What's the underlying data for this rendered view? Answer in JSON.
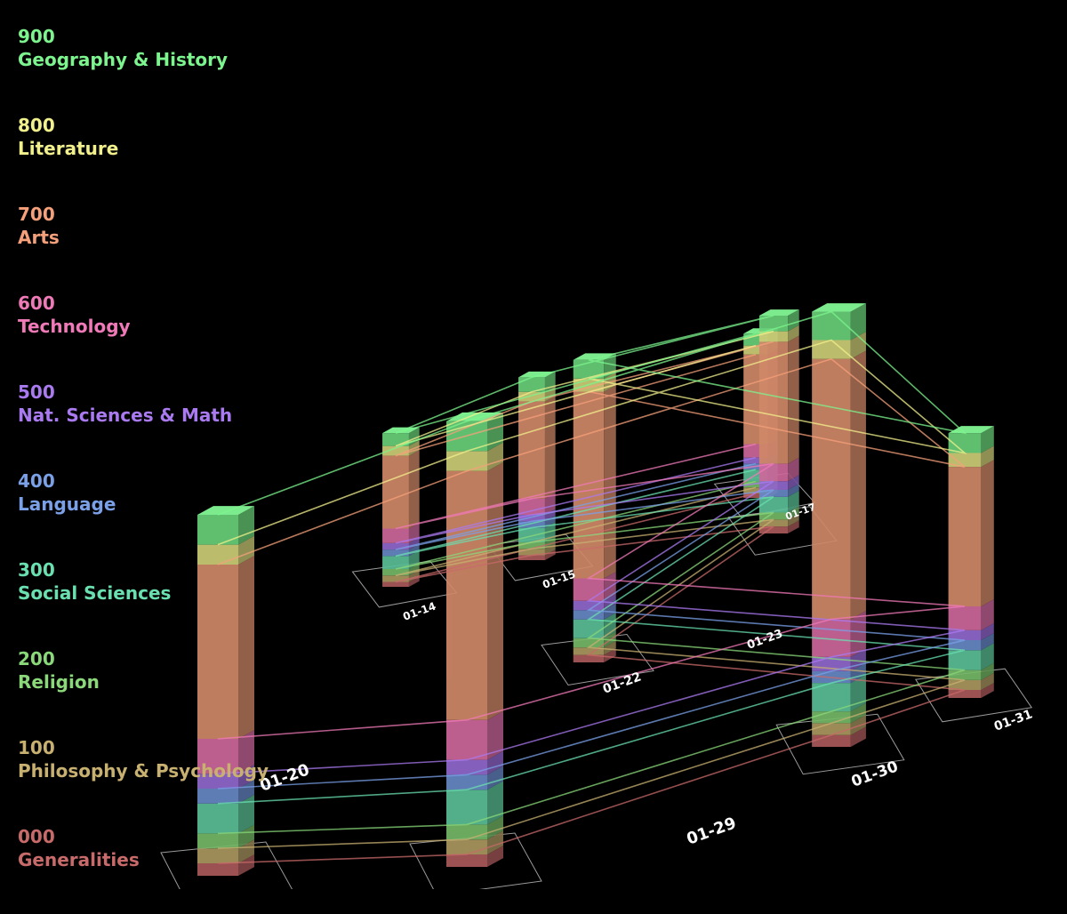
{
  "legend": [
    {
      "code": "900",
      "name": "Geography & History",
      "color": "#7cf58e"
    },
    {
      "code": "800",
      "name": "Literature",
      "color": "#f1f08c"
    },
    {
      "code": "700",
      "name": "Arts",
      "color": "#f5a07a"
    },
    {
      "code": "600",
      "name": "Technology",
      "color": "#f07ab8"
    },
    {
      "code": "500",
      "name": "Nat. Sciences & Math",
      "color": "#a97af0"
    },
    {
      "code": "400",
      "name": "Language",
      "color": "#7aa0e8"
    },
    {
      "code": "300",
      "name": "Social Sciences",
      "color": "#6ae0b0"
    },
    {
      "code": "200",
      "name": "Religion",
      "color": "#8ad87a"
    },
    {
      "code": "100",
      "name": "Philosophy & Psychology",
      "color": "#c8b070"
    },
    {
      "code": "000",
      "name": "Generalities",
      "color": "#c86a6a"
    }
  ],
  "chart_data": {
    "type": "bar",
    "title": "",
    "stacked": true,
    "categories": [
      "01-20",
      "01-29",
      "01-30",
      "01-31",
      "01-22",
      "01-23",
      "01-15",
      "01-14",
      "01-17"
    ],
    "series": [
      {
        "name": "Generalities",
        "values": [
          5,
          5,
          5,
          4,
          4,
          4,
          3,
          3,
          3
        ]
      },
      {
        "name": "Philosophy & Psychology",
        "values": [
          6,
          6,
          5,
          5,
          4,
          4,
          4,
          4,
          4
        ]
      },
      {
        "name": "Religion",
        "values": [
          6,
          6,
          5,
          5,
          5,
          4,
          4,
          4,
          4
        ]
      },
      {
        "name": "Social Sciences",
        "values": [
          12,
          14,
          12,
          10,
          10,
          9,
          9,
          8,
          8
        ]
      },
      {
        "name": "Language",
        "values": [
          6,
          6,
          5,
          5,
          5,
          4,
          4,
          4,
          4
        ]
      },
      {
        "name": "Nat. Sciences & Math",
        "values": [
          6,
          6,
          6,
          5,
          5,
          5,
          4,
          4,
          4
        ]
      },
      {
        "name": "Technology",
        "values": [
          14,
          16,
          16,
          12,
          12,
          10,
          10,
          9,
          9
        ]
      },
      {
        "name": "Arts",
        "values": [
          70,
          100,
          110,
          70,
          100,
          70,
          60,
          45,
          60
        ]
      },
      {
        "name": "Literature",
        "values": [
          8,
          8,
          8,
          7,
          7,
          6,
          6,
          6,
          6
        ]
      },
      {
        "name": "Geography & History",
        "values": [
          12,
          12,
          12,
          10,
          10,
          9,
          9,
          8,
          8
        ]
      }
    ]
  }
}
